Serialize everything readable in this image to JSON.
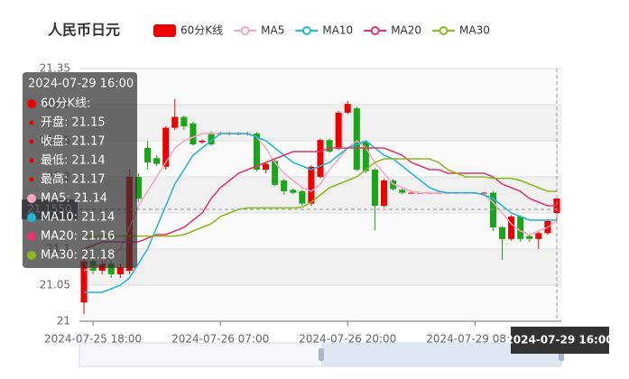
{
  "chart_data": {
    "type": "candlestick",
    "title": "人民币日元",
    "categories": [
      null,
      "2024-07-25 18:00",
      null,
      null,
      null,
      null,
      null,
      null,
      null,
      null,
      null,
      null,
      null,
      null,
      null,
      "2024-07-26 07:00",
      null,
      null,
      null,
      null,
      null,
      null,
      null,
      null,
      null,
      null,
      null,
      null,
      null,
      "2024-07-26 20:00",
      null,
      null,
      null,
      null,
      null,
      null,
      null,
      null,
      null,
      null,
      null,
      null,
      null,
      "2024-07-29 08:00",
      null,
      null,
      null,
      null,
      null,
      null,
      null,
      null,
      "2024-07-29 16:00"
    ],
    "ylim": [
      21,
      21.35
    ],
    "yticks": [
      21,
      21.05,
      21.1,
      21.15,
      21.2,
      21.25,
      21.3,
      21.35
    ],
    "grid": true,
    "split_area": true,
    "legend": "top",
    "up_color": "#ec0000",
    "down_color": "#19a719",
    "series": [
      {
        "name": "60分K线",
        "type": "candlestick",
        "color": "#ec0000",
        "values": [
          [
            21.026,
            21.083,
            21.01,
            21.09
          ],
          [
            21.083,
            21.07,
            21.065,
            21.09
          ],
          [
            21.07,
            21.08,
            21.065,
            21.085
          ],
          [
            21.08,
            21.065,
            21.06,
            21.085
          ],
          [
            21.065,
            21.075,
            21.06,
            21.08
          ],
          [
            21.07,
            21.2,
            21.065,
            21.21
          ],
          [
            21.2,
            21.17,
            21.165,
            21.205
          ],
          [
            21.24,
            21.22,
            21.21,
            21.25
          ],
          [
            21.226,
            21.218,
            21.215,
            21.23
          ],
          [
            21.214,
            21.268,
            21.21,
            21.27
          ],
          [
            21.268,
            21.283,
            21.265,
            21.308
          ],
          [
            21.283,
            21.27,
            21.265,
            21.285
          ],
          [
            21.274,
            21.245,
            21.243,
            21.276
          ],
          [
            21.248,
            21.25,
            21.246,
            21.252
          ],
          [
            21.261,
            21.245,
            21.243,
            21.263
          ],
          [
            21.26,
            21.261,
            21.258,
            21.262
          ],
          [
            21.26,
            21.261,
            21.258,
            21.262
          ],
          [
            21.26,
            21.26,
            21.258,
            21.262
          ],
          [
            21.26,
            21.26,
            21.258,
            21.262
          ],
          [
            21.26,
            21.21,
            21.208,
            21.262
          ],
          [
            21.21,
            21.218,
            21.205,
            21.22
          ],
          [
            21.222,
            21.189,
            21.187,
            21.224
          ],
          [
            21.195,
            21.18,
            21.175,
            21.197
          ],
          [
            21.182,
            21.178,
            21.176,
            21.184
          ],
          [
            21.18,
            21.163,
            21.16,
            21.182
          ],
          [
            21.163,
            21.214,
            21.16,
            21.216
          ],
          [
            21.2,
            21.251,
            21.198,
            21.253
          ],
          [
            21.251,
            21.235,
            21.233,
            21.253
          ],
          [
            21.239,
            21.289,
            21.237,
            21.291
          ],
          [
            21.289,
            21.301,
            21.287,
            21.305
          ],
          [
            21.295,
            21.21,
            21.208,
            21.297
          ],
          [
            21.248,
            21.208,
            21.205,
            21.25
          ],
          [
            21.21,
            21.16,
            21.126,
            21.212
          ],
          [
            21.16,
            21.195,
            21.158,
            21.197
          ],
          [
            21.195,
            21.183,
            21.181,
            21.197
          ],
          [
            21.182,
            21.178,
            21.176,
            21.184
          ],
          [
            21.178,
            21.178,
            21.177,
            21.179
          ],
          [
            21.178,
            21.178,
            21.177,
            21.179
          ],
          [
            21.178,
            21.178,
            21.177,
            21.179
          ],
          [
            21.178,
            21.178,
            21.177,
            21.179
          ],
          [
            21.178,
            21.178,
            21.177,
            21.179
          ],
          [
            21.178,
            21.178,
            21.177,
            21.179
          ],
          [
            21.178,
            21.178,
            21.177,
            21.179
          ],
          [
            21.178,
            21.178,
            21.177,
            21.179
          ],
          [
            21.178,
            21.178,
            21.177,
            21.179
          ],
          [
            21.178,
            21.13,
            21.125,
            21.18
          ],
          [
            21.13,
            21.114,
            21.085,
            21.132
          ],
          [
            21.114,
            21.145,
            21.112,
            21.147
          ],
          [
            21.145,
            21.114,
            21.11,
            21.147
          ],
          [
            21.118,
            21.114,
            21.11,
            21.12
          ],
          [
            21.114,
            21.122,
            21.1,
            21.124
          ],
          [
            21.122,
            21.139,
            21.12,
            21.141
          ],
          [
            21.15,
            21.17,
            21.14,
            21.17
          ]
        ]
      },
      {
        "name": "MA5",
        "type": "line",
        "color": "#f7a4c4",
        "values": [
          21.07,
          21.075,
          21.08,
          21.09,
          21.1,
          21.13,
          21.16,
          21.18,
          21.2,
          21.22,
          21.24,
          21.25,
          21.255,
          21.26,
          21.26,
          21.26,
          21.26,
          21.26,
          21.26,
          21.255,
          21.24,
          21.22,
          21.205,
          21.195,
          21.185,
          21.18,
          21.19,
          21.21,
          21.225,
          21.24,
          21.25,
          21.24,
          21.22,
          21.205,
          21.19,
          21.185,
          21.18,
          21.178,
          21.178,
          21.178,
          21.178,
          21.178,
          21.178,
          21.178,
          21.175,
          21.165,
          21.15,
          21.135,
          21.125,
          21.12,
          21.125,
          21.13,
          21.14
        ]
      },
      {
        "name": "MA10",
        "type": "line",
        "color": "#1cb8d4",
        "values": [
          21.04,
          21.04,
          21.04,
          21.045,
          21.05,
          21.06,
          21.08,
          21.1,
          21.13,
          21.16,
          21.19,
          21.21,
          21.23,
          21.24,
          21.25,
          21.26,
          21.26,
          21.26,
          21.26,
          21.255,
          21.25,
          21.24,
          21.23,
          21.22,
          21.215,
          21.21,
          21.215,
          21.22,
          21.23,
          21.24,
          21.245,
          21.25,
          21.24,
          21.23,
          21.225,
          21.215,
          21.205,
          21.195,
          21.185,
          21.18,
          21.178,
          21.178,
          21.178,
          21.178,
          21.175,
          21.17,
          21.16,
          21.15,
          21.145,
          21.14,
          21.14,
          21.14,
          21.14
        ]
      },
      {
        "name": "MA20",
        "type": "line",
        "color": "#e5336c",
        "values": [
          21.1,
          21.105,
          21.11,
          21.11,
          21.11,
          21.11,
          21.11,
          21.115,
          21.12,
          21.12,
          21.125,
          21.13,
          21.14,
          21.15,
          21.17,
          21.185,
          21.195,
          21.205,
          21.21,
          21.215,
          21.22,
          21.225,
          21.23,
          21.235,
          21.235,
          21.235,
          21.235,
          21.24,
          21.24,
          21.24,
          21.24,
          21.24,
          21.24,
          21.24,
          21.235,
          21.23,
          21.22,
          21.215,
          21.21,
          21.21,
          21.205,
          21.205,
          21.205,
          21.205,
          21.205,
          21.2,
          21.19,
          21.185,
          21.18,
          21.17,
          21.165,
          21.16,
          21.16
        ]
      },
      {
        "name": "MA30",
        "type": "line",
        "color": "#8cb81a",
        "values": [
          21.118,
          21.118,
          21.118,
          21.118,
          21.118,
          21.118,
          21.118,
          21.118,
          21.118,
          21.118,
          21.118,
          21.12,
          21.125,
          21.13,
          21.135,
          21.145,
          21.15,
          21.155,
          21.157,
          21.157,
          21.157,
          21.157,
          21.157,
          21.157,
          21.158,
          21.165,
          21.175,
          21.185,
          21.19,
          21.195,
          21.2,
          21.21,
          21.22,
          21.225,
          21.225,
          21.225,
          21.225,
          21.225,
          21.225,
          21.22,
          21.21,
          21.205,
          21.2,
          21.2,
          21.2,
          21.198,
          21.198,
          21.198,
          21.195,
          21.19,
          21.185,
          21.18,
          21.18
        ]
      }
    ],
    "axis_pointer": {
      "y": {
        "value": 21.155,
        "label": "21.1550"
      },
      "index": 52
    },
    "tooltip": {
      "rows": [
        {
          "label": "60分K线:",
          "color": "#ec0000",
          "big": true
        },
        {
          "label": "开盘:",
          "value": 21.15,
          "color": "#ec0000"
        },
        {
          "label": "收盘:",
          "value": 21.17,
          "color": "#ec0000"
        },
        {
          "label": "最低:",
          "value": 21.14,
          "color": "#ec0000"
        },
        {
          "label": "最高:",
          "value": 21.17,
          "color": "#ec0000"
        },
        {
          "label": "MA5:",
          "value": 21.14,
          "color": "#f7a4c4",
          "big": true
        },
        {
          "label": "MA10:",
          "value": 21.14,
          "color": "#1cb8d4",
          "big": true
        },
        {
          "label": "MA20:",
          "value": 21.16,
          "color": "#e5336c",
          "big": true
        },
        {
          "label": "MA30:",
          "value": 21.18,
          "color": "#8cb81a",
          "big": true
        }
      ]
    }
  }
}
